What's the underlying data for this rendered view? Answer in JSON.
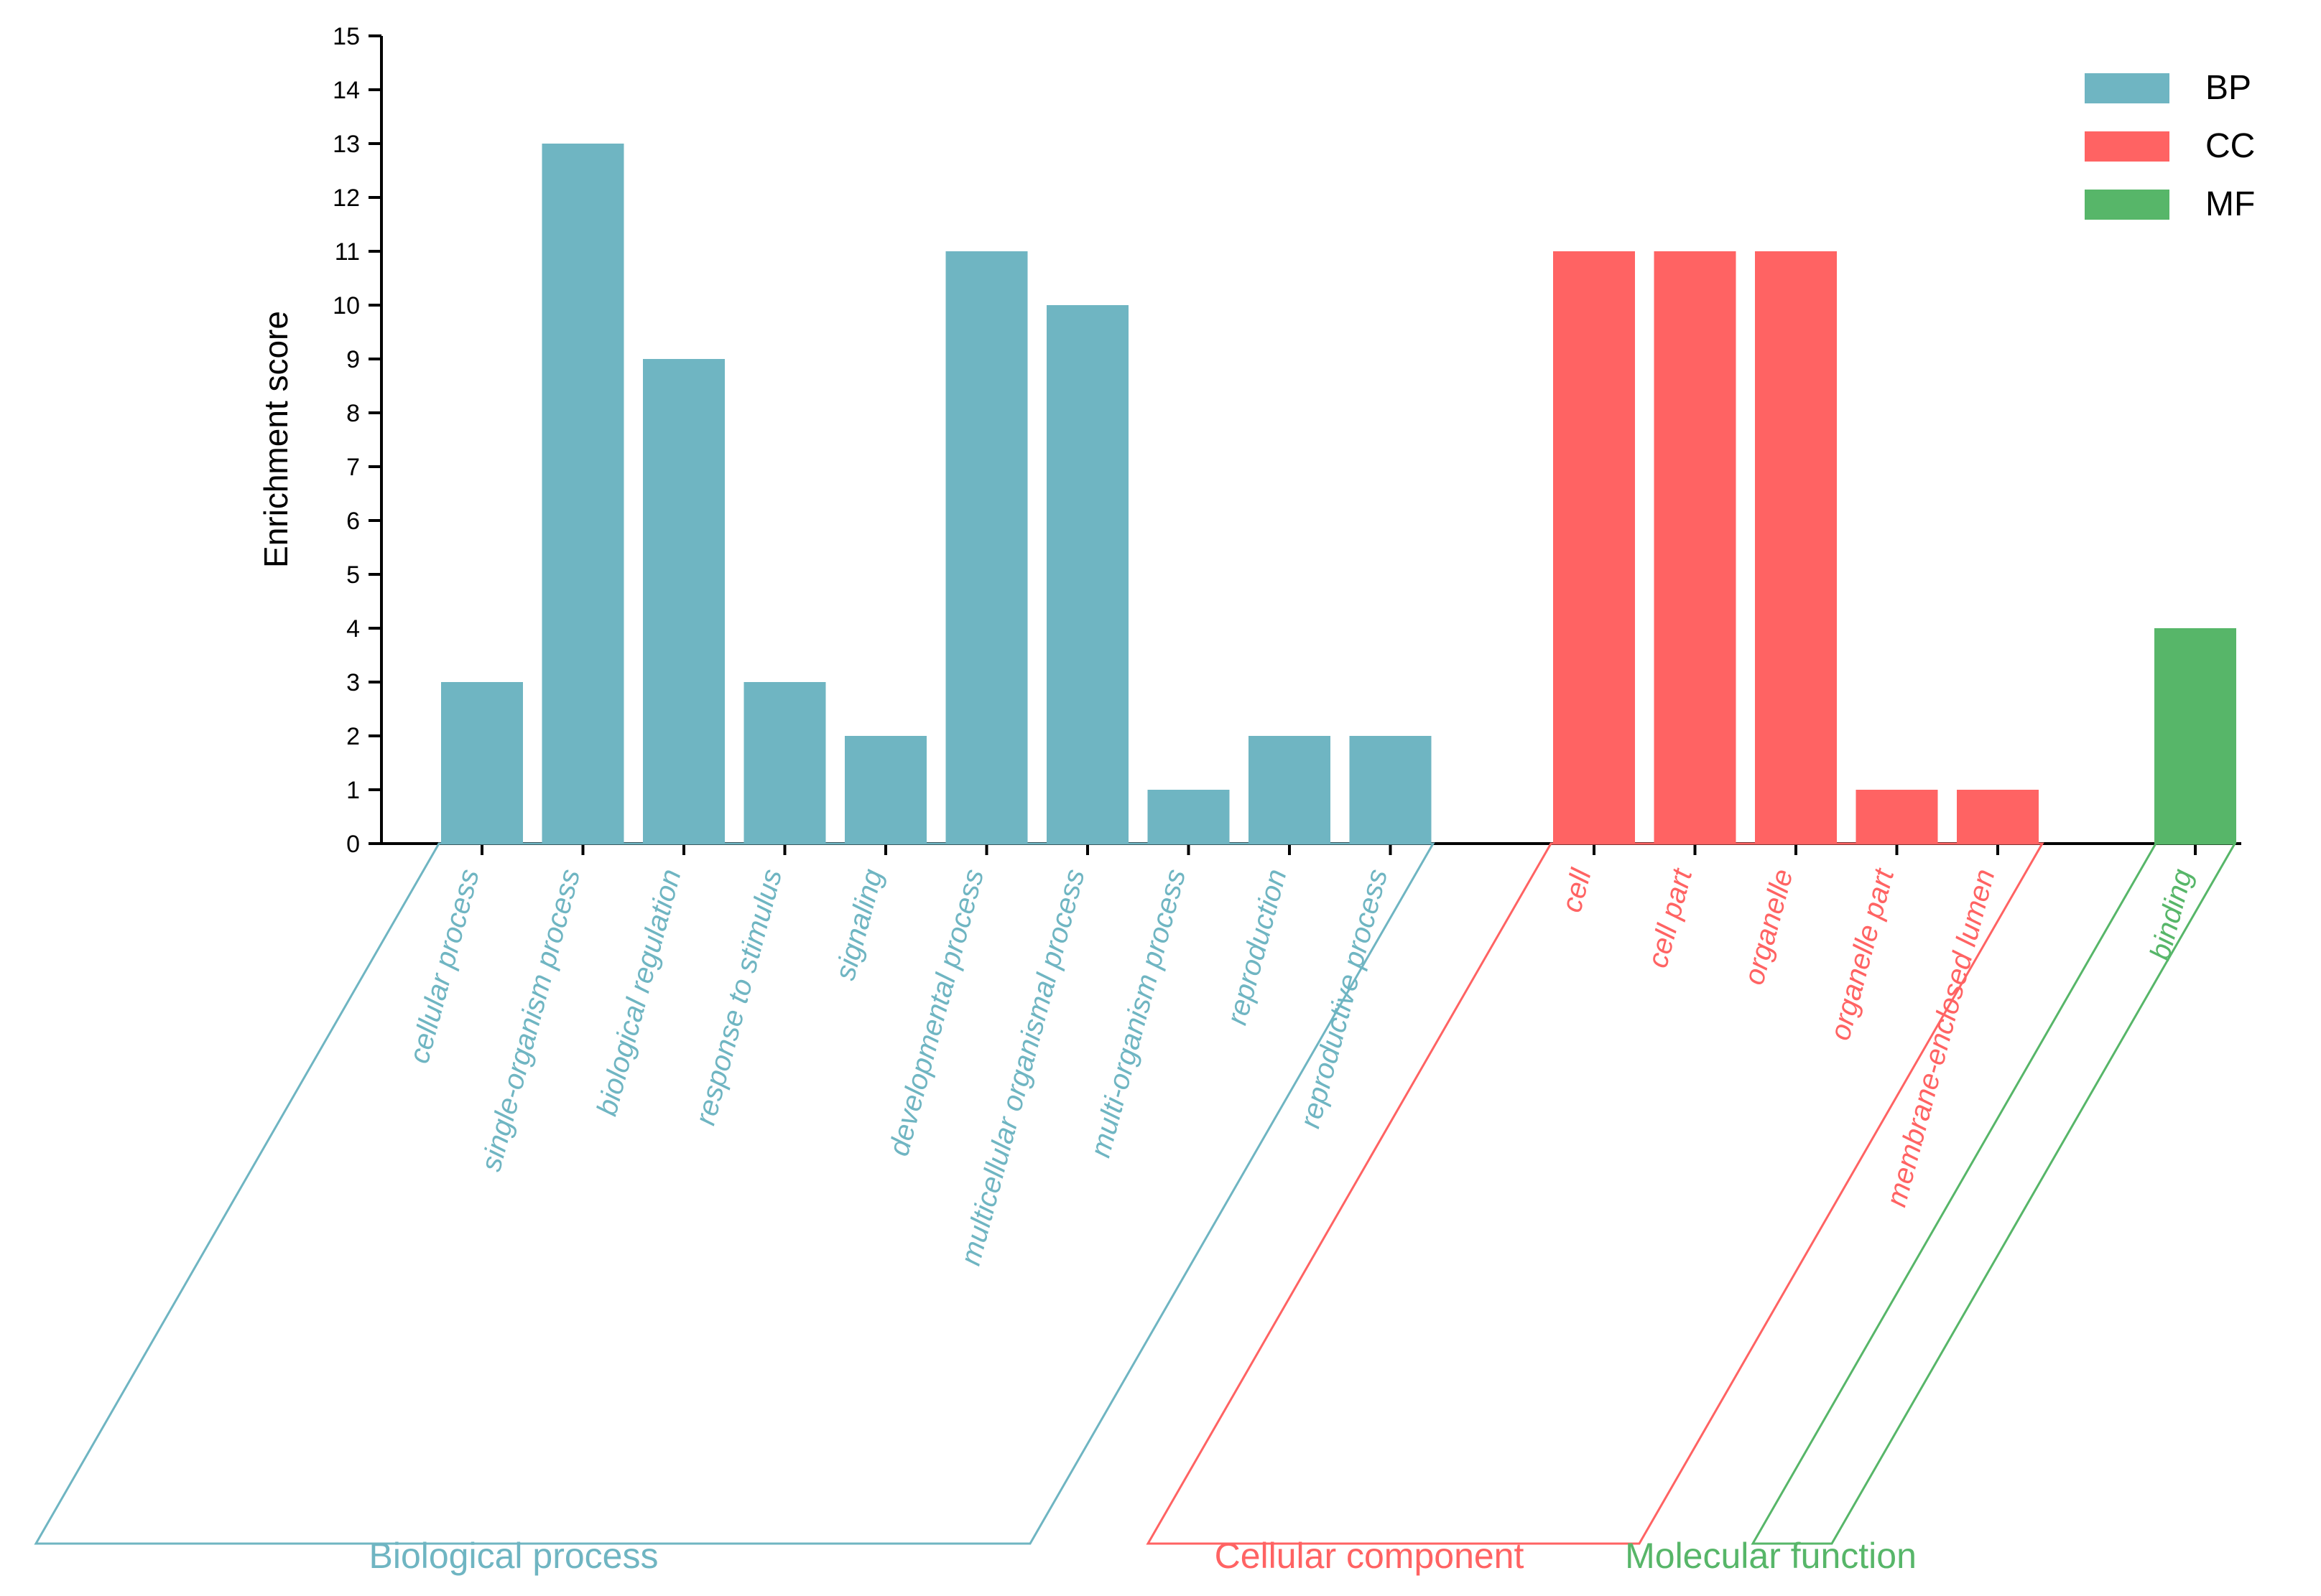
{
  "colors": {
    "BP": "#6fb5c2",
    "CC": "#ff6363",
    "MF": "#57b669",
    "axis": "#000000"
  },
  "chart_data": {
    "type": "bar",
    "title": "",
    "xlabel": "",
    "ylabel": "Enrichment score",
    "ylim": [
      0,
      15
    ],
    "yticks": [
      0,
      1,
      2,
      3,
      4,
      5,
      6,
      7,
      8,
      9,
      10,
      11,
      12,
      13,
      14,
      15
    ],
    "grid": false,
    "legend_position": "top-right",
    "legend": [
      {
        "key": "BP",
        "label": "BP"
      },
      {
        "key": "CC",
        "label": "CC"
      },
      {
        "key": "MF",
        "label": "MF"
      }
    ],
    "groups": [
      {
        "key": "BP",
        "name": "Biological process",
        "categories": [
          "cellular process",
          "single-organism process",
          "biological regulation",
          "response to stimulus",
          "signaling",
          "developmental process",
          "multicellular organismal process",
          "multi-organism process",
          "reproduction",
          "reproductive process"
        ],
        "values": [
          3,
          13,
          9,
          3,
          2,
          11,
          10,
          1,
          2,
          2
        ]
      },
      {
        "key": "CC",
        "name": "Cellular component",
        "categories": [
          "cell",
          "cell part",
          "organelle",
          "organelle part",
          "membrane-enclosed lumen"
        ],
        "values": [
          11,
          11,
          11,
          1,
          1
        ]
      },
      {
        "key": "MF",
        "name": "Molecular function",
        "categories": [
          "binding"
        ],
        "values": [
          4
        ]
      }
    ]
  }
}
